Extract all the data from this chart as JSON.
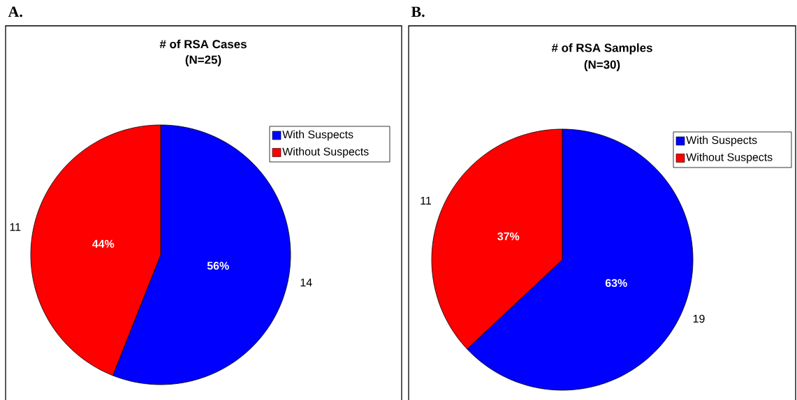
{
  "chart_data": [
    {
      "type": "pie",
      "title": "# of RSA Cases",
      "subtitle": "(N=25)",
      "annotations": [
        "A.",
        {
          "text": "14",
          "x": "With Suspects"
        },
        {
          "text": "11",
          "x": "Without Suspects"
        }
      ],
      "categories": [
        "With Suspects",
        "Without Suspects"
      ],
      "values": [
        56,
        44
      ],
      "colors": [
        "#0000ff",
        "#ff0000"
      ],
      "value_labels": [
        "56%",
        "44%"
      ],
      "legend": "right"
    },
    {
      "type": "pie",
      "title": "# of RSA Samples",
      "subtitle": "(N=30)",
      "annotations": [
        "B.",
        {
          "text": "19",
          "x": "With Suspects"
        },
        {
          "text": "11",
          "x": "Without Suspects"
        }
      ],
      "categories": [
        "With Suspects",
        "Without Suspects"
      ],
      "values": [
        63,
        37
      ],
      "colors": [
        "#0000ff",
        "#ff0000"
      ],
      "value_labels": [
        "63%",
        "37%"
      ],
      "legend": "right"
    }
  ]
}
